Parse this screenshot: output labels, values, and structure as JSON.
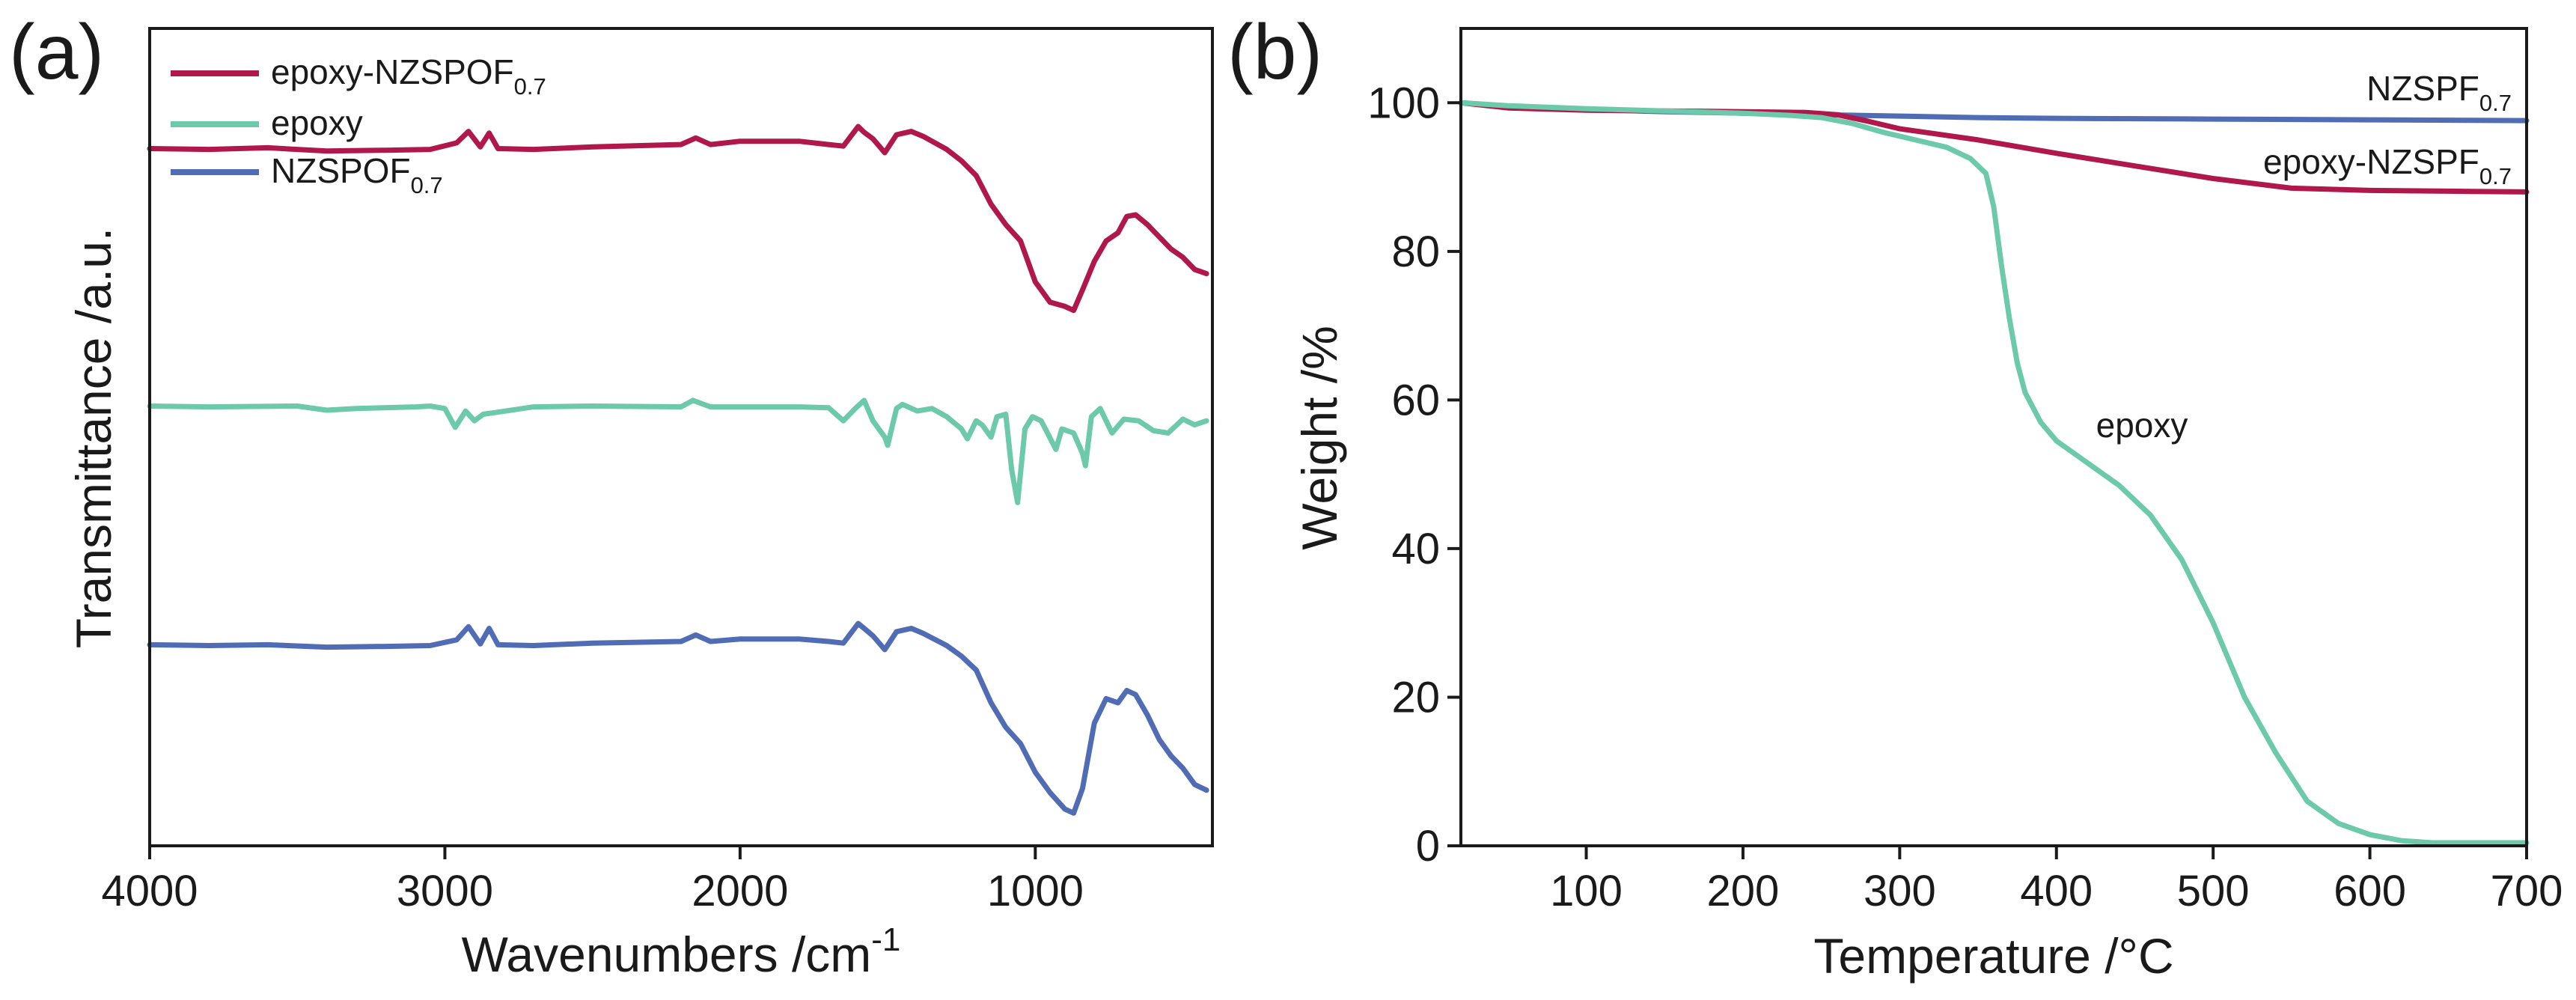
{
  "colors": {
    "epoxy_nzs": "#b0174a",
    "epoxy": "#6cc9a9",
    "nzs": "#4f6cb5",
    "axis": "#1a1a1a"
  },
  "chart_data": [
    {
      "panel": "(a)",
      "type": "line",
      "title": "",
      "xlabel": "Wavenumbers /cm",
      "xlabel_sup": "-1",
      "ylabel": "Transmittance /a.u.",
      "xlim": [
        4000,
        400
      ],
      "ylim": [
        0,
        1
      ],
      "xticks": [
        4000,
        3000,
        2000,
        1000
      ],
      "yticks": [],
      "legend": [
        {
          "text": "epoxy-NZSPOF",
          "sub": "0.7",
          "color": "#b0174a"
        },
        {
          "text": "epoxy",
          "sub": "",
          "color": "#6cc9a9"
        },
        {
          "text": "NZSPOF",
          "sub": "0.7",
          "color": "#4f6cb5"
        }
      ],
      "series": [
        {
          "name": "epoxy-NZSPOF0.7",
          "color": "#b0174a",
          "x": [
            4000,
            3800,
            3600,
            3400,
            3200,
            3050,
            2960,
            2920,
            2880,
            2850,
            2820,
            2700,
            2500,
            2200,
            2150,
            2100,
            2000,
            1800,
            1700,
            1650,
            1600,
            1580,
            1550,
            1510,
            1470,
            1420,
            1380,
            1300,
            1250,
            1200,
            1150,
            1100,
            1050,
            1000,
            950,
            900,
            870,
            840,
            800,
            760,
            720,
            690,
            660,
            620,
            580,
            540,
            500,
            460,
            420
          ],
          "values": [
            0.853,
            0.852,
            0.854,
            0.85,
            0.851,
            0.852,
            0.86,
            0.874,
            0.855,
            0.872,
            0.853,
            0.852,
            0.855,
            0.858,
            0.866,
            0.858,
            0.862,
            0.862,
            0.858,
            0.856,
            0.88,
            0.873,
            0.865,
            0.848,
            0.87,
            0.874,
            0.868,
            0.852,
            0.838,
            0.82,
            0.785,
            0.76,
            0.74,
            0.69,
            0.665,
            0.66,
            0.655,
            0.68,
            0.715,
            0.74,
            0.75,
            0.77,
            0.772,
            0.76,
            0.745,
            0.73,
            0.72,
            0.705,
            0.7
          ]
        },
        {
          "name": "epoxy",
          "color": "#6cc9a9",
          "x": [
            4000,
            3800,
            3500,
            3400,
            3300,
            3100,
            3050,
            3000,
            2965,
            2930,
            2900,
            2870,
            2830,
            2700,
            2500,
            2200,
            2160,
            2100,
            1800,
            1700,
            1650,
            1610,
            1580,
            1550,
            1510,
            1500,
            1470,
            1450,
            1400,
            1350,
            1300,
            1250,
            1230,
            1200,
            1180,
            1150,
            1130,
            1100,
            1080,
            1060,
            1035,
            1010,
            980,
            930,
            910,
            870,
            840,
            830,
            810,
            780,
            760,
            740,
            700,
            650,
            600,
            550,
            500,
            460,
            420
          ],
          "values": [
            0.538,
            0.537,
            0.538,
            0.533,
            0.535,
            0.537,
            0.538,
            0.535,
            0.512,
            0.532,
            0.52,
            0.528,
            0.53,
            0.537,
            0.538,
            0.537,
            0.545,
            0.537,
            0.537,
            0.536,
            0.52,
            0.535,
            0.545,
            0.52,
            0.5,
            0.49,
            0.535,
            0.54,
            0.532,
            0.535,
            0.525,
            0.51,
            0.498,
            0.52,
            0.515,
            0.5,
            0.525,
            0.528,
            0.46,
            0.42,
            0.51,
            0.525,
            0.52,
            0.485,
            0.51,
            0.505,
            0.48,
            0.465,
            0.525,
            0.535,
            0.52,
            0.505,
            0.522,
            0.52,
            0.508,
            0.505,
            0.522,
            0.515,
            0.52
          ]
        },
        {
          "name": "NZSPOF0.7",
          "color": "#4f6cb5",
          "x": [
            4000,
            3800,
            3600,
            3400,
            3200,
            3050,
            2960,
            2920,
            2880,
            2850,
            2820,
            2700,
            2500,
            2200,
            2150,
            2100,
            2000,
            1800,
            1700,
            1650,
            1600,
            1580,
            1550,
            1510,
            1470,
            1420,
            1380,
            1300,
            1250,
            1200,
            1150,
            1100,
            1050,
            1000,
            950,
            900,
            870,
            840,
            800,
            760,
            720,
            690,
            660,
            620,
            580,
            540,
            500,
            460,
            420
          ],
          "values": [
            0.246,
            0.245,
            0.246,
            0.243,
            0.244,
            0.245,
            0.252,
            0.268,
            0.247,
            0.266,
            0.246,
            0.245,
            0.248,
            0.25,
            0.258,
            0.25,
            0.253,
            0.253,
            0.25,
            0.248,
            0.272,
            0.266,
            0.257,
            0.24,
            0.262,
            0.266,
            0.26,
            0.245,
            0.232,
            0.215,
            0.175,
            0.145,
            0.125,
            0.09,
            0.065,
            0.045,
            0.04,
            0.07,
            0.15,
            0.18,
            0.175,
            0.19,
            0.185,
            0.16,
            0.13,
            0.11,
            0.095,
            0.075,
            0.068
          ]
        }
      ]
    },
    {
      "panel": "(b)",
      "type": "line",
      "title": "",
      "xlabel": "Temperature /°C",
      "ylabel": "Weight /%",
      "xlim": [
        20,
        700
      ],
      "ylim": [
        0,
        110
      ],
      "xticks": [
        100,
        200,
        300,
        400,
        500,
        600,
        700
      ],
      "yticks": [
        0,
        20,
        40,
        60,
        80,
        100
      ],
      "annotations": [
        {
          "text": "NZSPF",
          "sub": "0.7",
          "x": 690,
          "y": 101.5,
          "anchor": "end"
        },
        {
          "text": "epoxy-NZSPF",
          "sub": "0.7",
          "x": 690,
          "y": 92.5,
          "anchor": "end"
        },
        {
          "text": "epoxy",
          "x": 462,
          "y": 55,
          "anchor": "middle"
        }
      ],
      "series": [
        {
          "name": "NZSPF0.7",
          "color": "#4f6cb5",
          "x": [
            20,
            50,
            100,
            150,
            200,
            250,
            300,
            350,
            400,
            500,
            600,
            700
          ],
          "values": [
            100,
            99.5,
            99.1,
            98.8,
            98.6,
            98.4,
            98.2,
            98.0,
            97.9,
            97.8,
            97.7,
            97.6
          ]
        },
        {
          "name": "epoxy-NZSPF0.7",
          "color": "#b0174a",
          "x": [
            20,
            50,
            100,
            150,
            200,
            240,
            260,
            280,
            300,
            350,
            400,
            450,
            500,
            550,
            600,
            650,
            700
          ],
          "values": [
            100,
            99.3,
            99.0,
            98.9,
            98.8,
            98.7,
            98.4,
            97.5,
            96.5,
            95.0,
            93.2,
            91.5,
            89.8,
            88.5,
            88.2,
            88.1,
            88.0
          ]
        },
        {
          "name": "epoxy",
          "color": "#6cc9a9",
          "x": [
            20,
            50,
            100,
            150,
            200,
            230,
            250,
            270,
            290,
            310,
            330,
            345,
            355,
            360,
            365,
            370,
            375,
            380,
            390,
            400,
            420,
            440,
            460,
            480,
            500,
            510,
            520,
            540,
            560,
            580,
            600,
            620,
            640,
            700
          ],
          "values": [
            100,
            99.6,
            99.2,
            98.9,
            98.6,
            98.3,
            98.0,
            97.2,
            96.0,
            95.0,
            94.0,
            92.5,
            90.5,
            86.0,
            78.0,
            71.0,
            65.0,
            61.0,
            57.0,
            54.5,
            51.5,
            48.5,
            44.5,
            38.5,
            30.0,
            25.0,
            20.0,
            12.5,
            6.0,
            3.0,
            1.5,
            0.7,
            0.4,
            0.4
          ]
        }
      ]
    }
  ]
}
